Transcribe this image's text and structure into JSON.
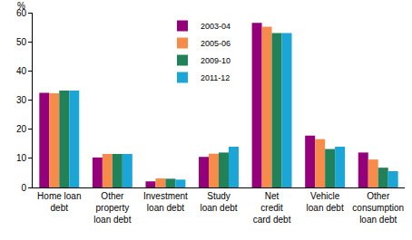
{
  "chart_data": {
    "type": "bar",
    "ylabel": "%",
    "categories": [
      "Home loan debt",
      "Other property loan debt",
      "Investment loan debt",
      "Study loan debt",
      "Net credit card debt",
      "Vehicle loan debt",
      "Other consumption loan debt"
    ],
    "series": [
      {
        "name": "2003-04",
        "color": "#93007a",
        "values": [
          32.5,
          10.3,
          2.1,
          10.5,
          56.5,
          17.8,
          12.0
        ]
      },
      {
        "name": "2005-06",
        "color": "#f78c4a",
        "values": [
          32.3,
          11.5,
          3.1,
          11.6,
          55.2,
          16.6,
          9.6
        ]
      },
      {
        "name": "2009-10",
        "color": "#21825a",
        "values": [
          33.3,
          11.5,
          3.0,
          12.0,
          53.0,
          13.2,
          6.8
        ]
      },
      {
        "name": "2011-12",
        "color": "#1ca6d8",
        "values": [
          33.3,
          11.5,
          2.7,
          14.0,
          53.0,
          14.0,
          5.6
        ]
      }
    ],
    "ylim": [
      0,
      60
    ],
    "yticks": [
      0,
      10,
      20,
      30,
      40,
      50,
      60
    ],
    "grid": false,
    "legend": "top"
  }
}
